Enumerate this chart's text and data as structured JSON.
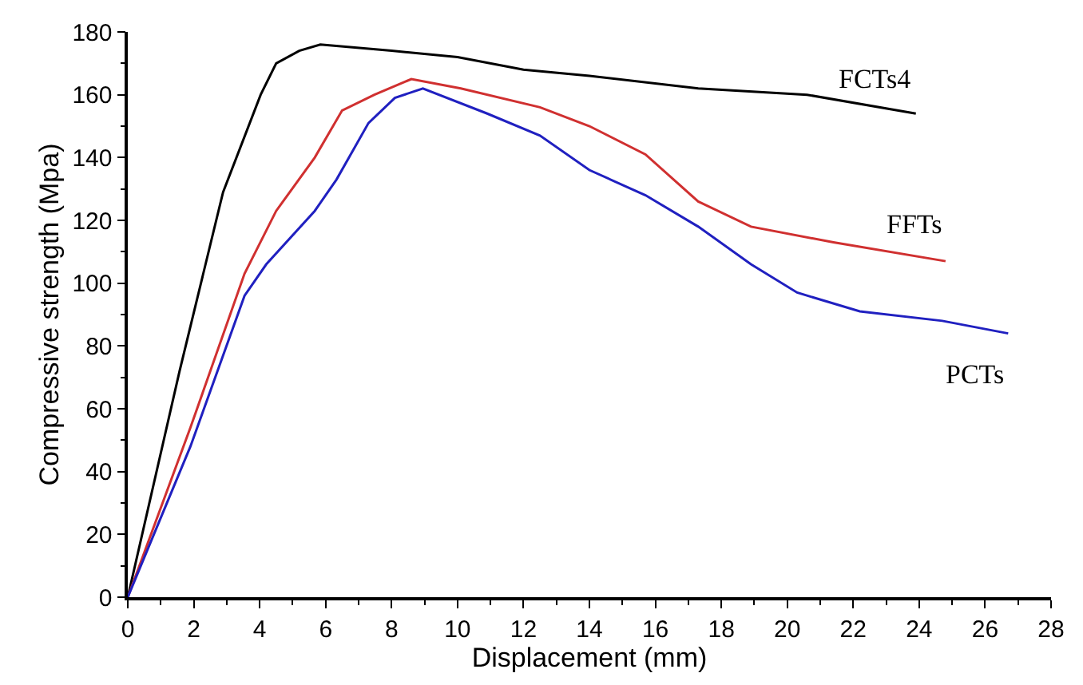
{
  "chart_data": {
    "type": "line",
    "xlabel": "Displacement (mm)",
    "ylabel": "Compressive strength (Mpa)",
    "xlim": [
      0,
      28
    ],
    "xticks": [
      0,
      2,
      4,
      6,
      8,
      10,
      12,
      14,
      16,
      18,
      20,
      22,
      24,
      26,
      28
    ],
    "ylim": [
      0,
      180
    ],
    "yticks": [
      0,
      20,
      40,
      60,
      80,
      100,
      120,
      140,
      160,
      180
    ],
    "grid": false,
    "legend": false,
    "marker": "none",
    "line_style": "solid",
    "series": [
      {
        "name": "FCTs4",
        "color": "#000000",
        "x": [
          0,
          1.57,
          2.89,
          4.03,
          4.5,
          5.2,
          5.84,
          8,
          10,
          12,
          14,
          17.3,
          20.6,
          23.9
        ],
        "values": [
          0,
          72,
          129,
          160,
          170,
          174,
          176,
          174,
          172,
          168,
          166,
          162,
          160,
          154
        ]
      },
      {
        "name": "FFTs",
        "color": "#d03030",
        "x": [
          0,
          1.9,
          3.54,
          4.5,
          5.67,
          6.5,
          7.48,
          8.6,
          10.1,
          12.5,
          14,
          15.7,
          17.3,
          18.9,
          21.4,
          24.8
        ],
        "values": [
          0,
          54,
          103,
          123,
          140,
          155,
          160,
          165,
          162,
          156,
          150,
          141,
          126,
          118,
          113,
          107
        ]
      },
      {
        "name": "PCTs",
        "color": "#2020c0",
        "x": [
          0,
          1.9,
          3.54,
          4.2,
          5.67,
          6.33,
          7.3,
          8.1,
          8.95,
          10.9,
          12.5,
          14,
          15.7,
          17.3,
          18.9,
          20.3,
          22.2,
          24.7,
          26.7
        ],
        "values": [
          0,
          48,
          96,
          106,
          123,
          133,
          151,
          159,
          162,
          154,
          147,
          136,
          128,
          118,
          106,
          97,
          91,
          88,
          84
        ]
      }
    ]
  }
}
